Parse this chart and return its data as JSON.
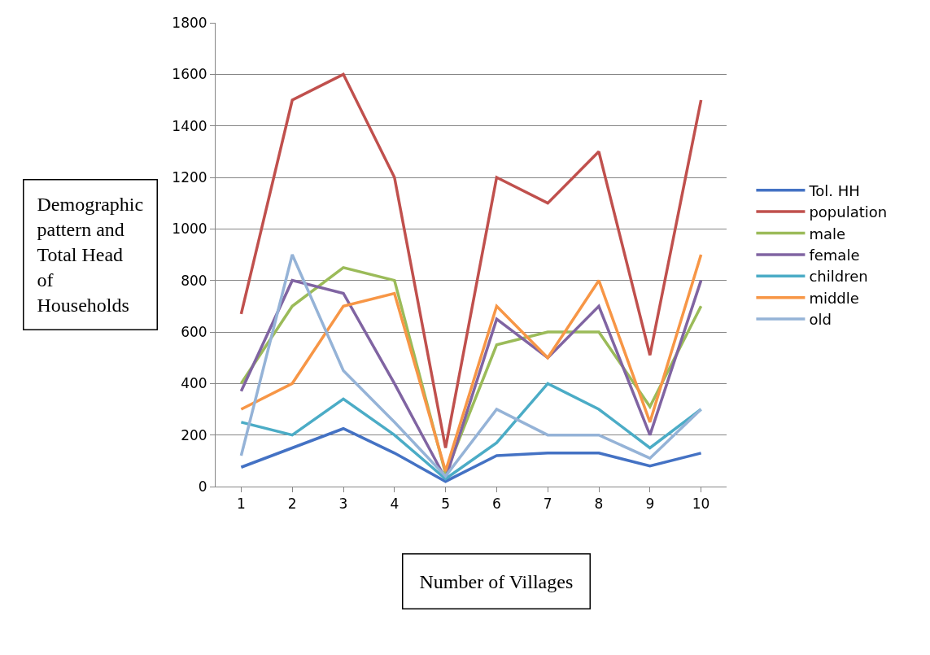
{
  "chart_data": {
    "type": "line",
    "xlabel": "Number of Villages",
    "ylabel": "Demographic pattern and Total Head of Households",
    "categories": [
      "1",
      "2",
      "3",
      "4",
      "5",
      "6",
      "7",
      "8",
      "9",
      "10"
    ],
    "ylim": [
      0,
      1800
    ],
    "yticks": [
      0,
      200,
      400,
      600,
      800,
      1000,
      1200,
      1400,
      1600,
      1800
    ],
    "grid": "y",
    "legend": "right",
    "marker": "none",
    "line_style": "solid",
    "series": [
      {
        "name": "Tol. HH",
        "color": "#4472c4",
        "values": [
          75,
          150,
          225,
          130,
          20,
          120,
          130,
          130,
          80,
          130
        ]
      },
      {
        "name": "population",
        "color": "#c0504d",
        "values": [
          670,
          1500,
          1600,
          1200,
          150,
          1200,
          1100,
          1300,
          510,
          1500
        ]
      },
      {
        "name": "male",
        "color": "#9bbb59",
        "values": [
          400,
          700,
          850,
          800,
          50,
          550,
          600,
          600,
          310,
          700
        ]
      },
      {
        "name": "female",
        "color": "#8064a2",
        "values": [
          370,
          800,
          750,
          400,
          30,
          650,
          500,
          700,
          200,
          800
        ]
      },
      {
        "name": "children",
        "color": "#4bacc6",
        "values": [
          250,
          200,
          340,
          200,
          30,
          170,
          400,
          300,
          150,
          300
        ]
      },
      {
        "name": "middle",
        "color": "#f79646",
        "values": [
          300,
          400,
          700,
          750,
          60,
          700,
          500,
          800,
          250,
          900
        ]
      },
      {
        "name": "old",
        "color": "#95b3d7",
        "values": [
          120,
          900,
          450,
          250,
          40,
          300,
          200,
          200,
          110,
          300
        ]
      }
    ]
  }
}
